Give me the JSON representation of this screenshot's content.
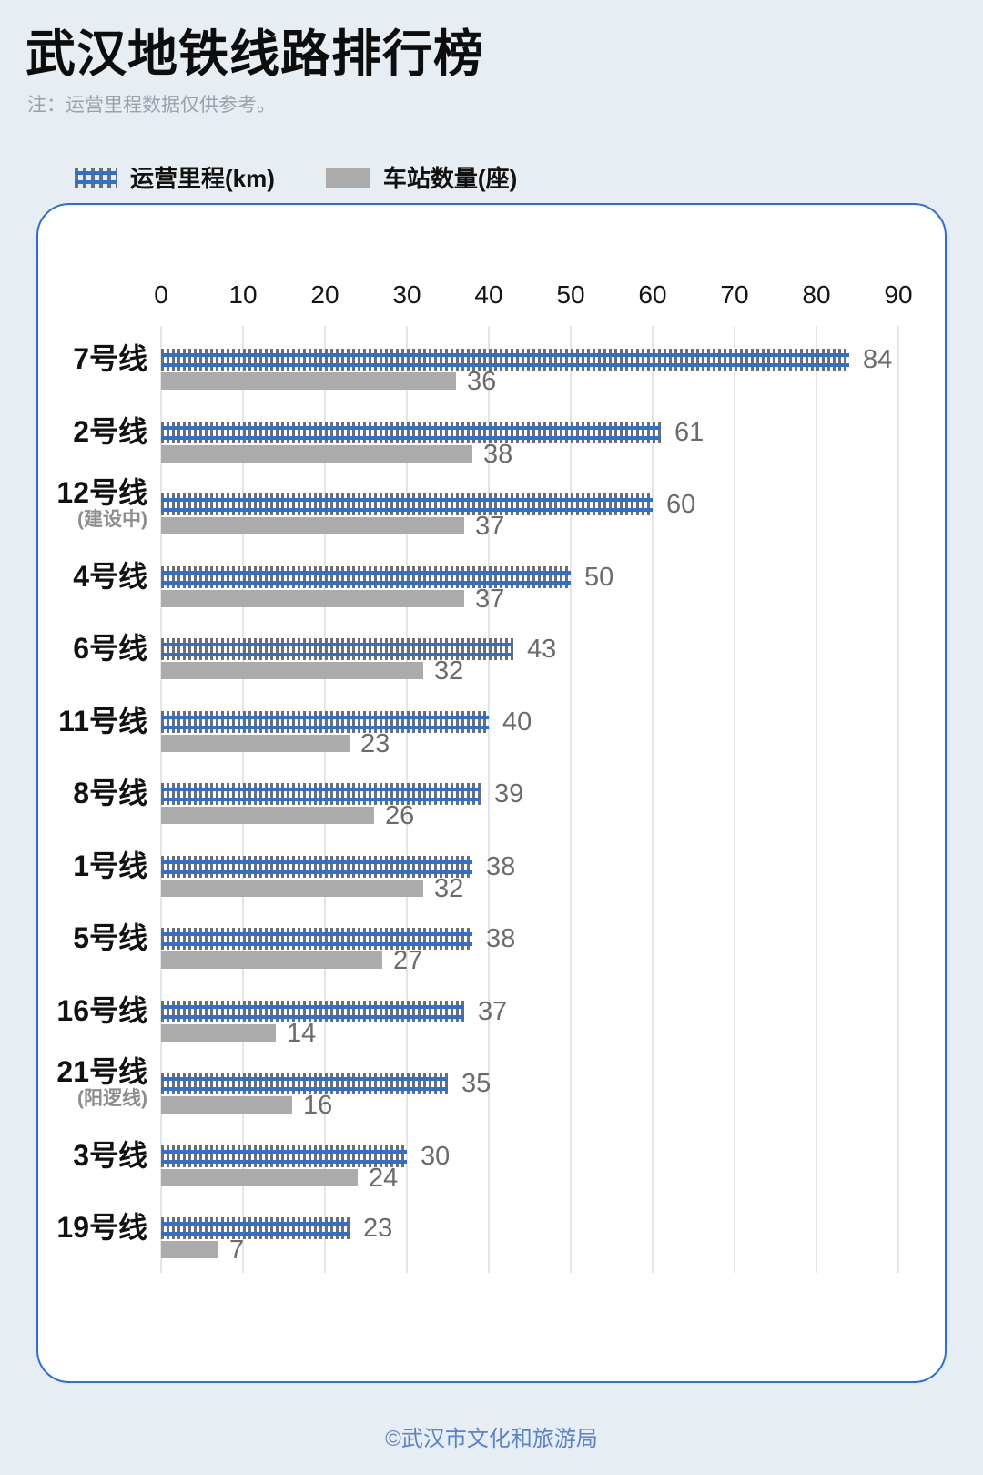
{
  "header": {
    "title": "武汉地铁线路排行榜",
    "note": "注：运营里程数据仅供参考。"
  },
  "legend": {
    "mileage_label": "运营里程(km)",
    "stations_label": "车站数量(座)"
  },
  "footer": {
    "credit": "©武汉市文化和旅游局"
  },
  "colors": {
    "background": "#e7eef3",
    "card_border": "#2e6fd2",
    "rail_blue": "#2e6fd2",
    "tie_gray": "#6e6e6e",
    "station_bar_gray": "#ababab",
    "value_label_gray": "#6b6b6b",
    "note_gray": "#9aa3ab",
    "footer_blue": "#5b83c7"
  },
  "chart_data": {
    "type": "bar",
    "orientation": "horizontal",
    "title": "武汉地铁线路排行榜",
    "xlabel": "",
    "ylabel": "",
    "xlim": [
      0,
      90
    ],
    "x_ticks": [
      0,
      10,
      20,
      30,
      40,
      50,
      60,
      70,
      80,
      90
    ],
    "grid": true,
    "legend_position": "top",
    "series_names": [
      "运营里程(km)",
      "车站数量(座)"
    ],
    "rows": [
      {
        "line": "7号线",
        "sub": "",
        "km": 84,
        "stations": 36
      },
      {
        "line": "2号线",
        "sub": "",
        "km": 61,
        "stations": 38
      },
      {
        "line": "12号线",
        "sub": "(建设中)",
        "km": 60,
        "stations": 37
      },
      {
        "line": "4号线",
        "sub": "",
        "km": 50,
        "stations": 37
      },
      {
        "line": "6号线",
        "sub": "",
        "km": 43,
        "stations": 32
      },
      {
        "line": "11号线",
        "sub": "",
        "km": 40,
        "stations": 23
      },
      {
        "line": "8号线",
        "sub": "",
        "km": 39,
        "stations": 26
      },
      {
        "line": "1号线",
        "sub": "",
        "km": 38,
        "stations": 32
      },
      {
        "line": "5号线",
        "sub": "",
        "km": 38,
        "stations": 27
      },
      {
        "line": "16号线",
        "sub": "",
        "km": 37,
        "stations": 14
      },
      {
        "line": "21号线",
        "sub": "(阳逻线)",
        "km": 35,
        "stations": 16
      },
      {
        "line": "3号线",
        "sub": "",
        "km": 30,
        "stations": 24
      },
      {
        "line": "19号线",
        "sub": "",
        "km": 23,
        "stations": 7
      }
    ]
  }
}
